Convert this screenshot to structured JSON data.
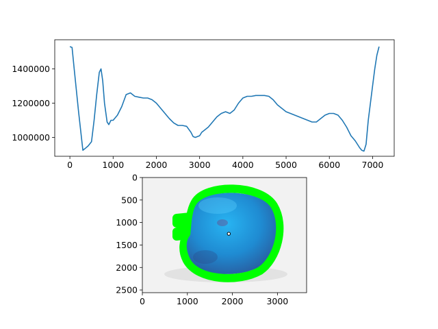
{
  "chart_data": [
    {
      "type": "line",
      "title": "",
      "xlabel": "",
      "ylabel": "",
      "xlim": [
        -350,
        7500
      ],
      "ylim": [
        890000,
        1570000
      ],
      "x_ticks": [
        0,
        1000,
        2000,
        3000,
        4000,
        5000,
        6000,
        7000
      ],
      "x_tick_labels": [
        "0",
        "1000",
        "2000",
        "3000",
        "4000",
        "5000",
        "6000",
        "7000"
      ],
      "y_ticks": [
        1000000,
        1200000,
        1400000
      ],
      "y_tick_labels": [
        "1000000",
        "1200000",
        "1400000"
      ],
      "grid": false,
      "series": [
        {
          "color": "#1f77b4",
          "x": [
            0,
            50,
            100,
            200,
            300,
            350,
            420,
            500,
            560,
            620,
            680,
            720,
            760,
            800,
            860,
            900,
            950,
            1000,
            1100,
            1200,
            1300,
            1400,
            1500,
            1600,
            1700,
            1800,
            1900,
            2000,
            2100,
            2200,
            2300,
            2400,
            2500,
            2600,
            2700,
            2800,
            2850,
            2900,
            2950,
            3000,
            3050,
            3100,
            3200,
            3300,
            3400,
            3500,
            3600,
            3700,
            3800,
            3900,
            4000,
            4100,
            4200,
            4300,
            4400,
            4500,
            4600,
            4700,
            4800,
            4900,
            5000,
            5100,
            5200,
            5300,
            5400,
            5500,
            5600,
            5700,
            5800,
            5900,
            6000,
            6100,
            6200,
            6300,
            6400,
            6500,
            6600,
            6700,
            6750,
            6800,
            6850,
            6900,
            7000,
            7050,
            7100,
            7150
          ],
          "y": [
            1530000,
            1525000,
            1400000,
            1150000,
            925000,
            935000,
            950000,
            975000,
            1100000,
            1250000,
            1380000,
            1400000,
            1330000,
            1200000,
            1090000,
            1075000,
            1100000,
            1100000,
            1130000,
            1180000,
            1250000,
            1260000,
            1240000,
            1235000,
            1230000,
            1230000,
            1220000,
            1200000,
            1170000,
            1140000,
            1110000,
            1085000,
            1070000,
            1070000,
            1065000,
            1030000,
            1005000,
            1000000,
            1005000,
            1010000,
            1030000,
            1040000,
            1060000,
            1090000,
            1120000,
            1140000,
            1150000,
            1140000,
            1160000,
            1200000,
            1230000,
            1240000,
            1240000,
            1245000,
            1245000,
            1245000,
            1240000,
            1220000,
            1190000,
            1170000,
            1150000,
            1140000,
            1130000,
            1120000,
            1110000,
            1100000,
            1090000,
            1090000,
            1110000,
            1130000,
            1140000,
            1140000,
            1130000,
            1100000,
            1060000,
            1010000,
            980000,
            940000,
            925000,
            920000,
            960000,
            1100000,
            1300000,
            1400000,
            1480000,
            1530000
          ]
        }
      ]
    },
    {
      "type": "image",
      "title": "",
      "xlabel": "",
      "ylabel": "",
      "xlim": [
        0,
        3648
      ],
      "ylim": [
        2560,
        0
      ],
      "x_ticks": [
        0,
        1000,
        2000,
        3000
      ],
      "x_tick_labels": [
        "0",
        "1000",
        "2000",
        "3000"
      ],
      "y_ticks": [
        0,
        500,
        1000,
        1500,
        2000,
        2500
      ],
      "y_tick_labels": [
        "0",
        "500",
        "1000",
        "1500",
        "2000",
        "2500"
      ],
      "outline_color": "#00ff00",
      "fruit_colors": [
        "#22b0f0",
        "#1e88d0",
        "#2a5a9c"
      ],
      "centroid": [
        1920,
        1250
      ]
    }
  ]
}
